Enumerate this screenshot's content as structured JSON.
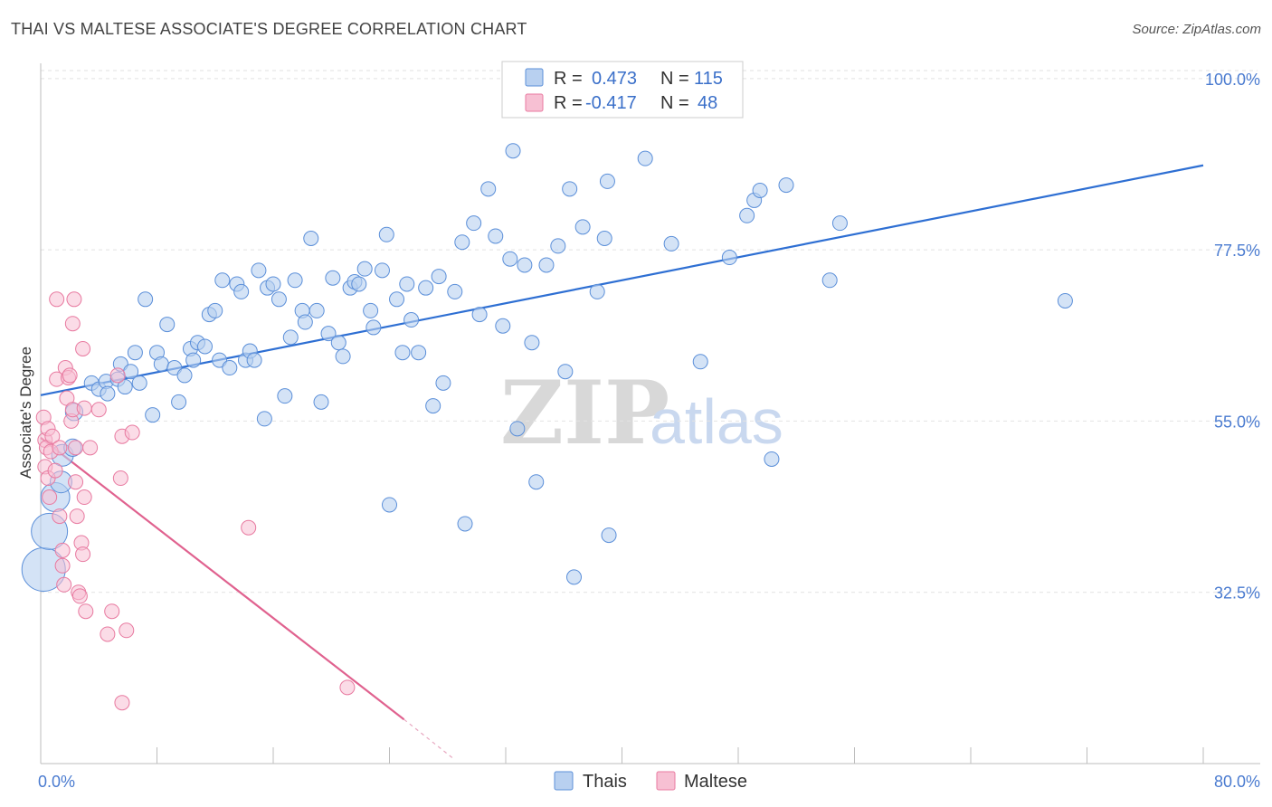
{
  "title": "THAI VS MALTESE ASSOCIATE'S DEGREE CORRELATION CHART",
  "source": "Source: ZipAtlas.com",
  "watermark": {
    "zip": "ZIP",
    "atlas": "atlas"
  },
  "colors": {
    "thais": "#5b8fd9",
    "maltese": "#e87aa0",
    "thais_fill": "#b8d0f0",
    "maltese_fill": "#f7c0d3",
    "tick": "#4a7bd0"
  },
  "legend": {
    "rows": [
      {
        "r_label": "R =",
        "r_value": "0.473",
        "n_label": "N =",
        "n_value": "115"
      },
      {
        "r_label": "R =",
        "r_value": "-0.417",
        "n_label": "N =",
        "n_value": "48"
      }
    ]
  },
  "chart_data": {
    "type": "scatter",
    "xlabel": "",
    "ylabel": "Associate's Degree",
    "xlim": [
      0,
      80
    ],
    "ylim": [
      10,
      102
    ],
    "x_tick_labels": [
      "0.0%",
      "80.0%"
    ],
    "y_ticks": [
      32.5,
      55.0,
      77.5,
      100.0
    ],
    "y_tick_labels": [
      "32.5%",
      "55.0%",
      "77.5%",
      "100.0%"
    ],
    "grid": true,
    "legend_position": "top-center",
    "series": [
      {
        "name": "Thais",
        "r": 0.473,
        "n": 115,
        "trend": {
          "x0": 0,
          "y0": 58.4,
          "x1": 80,
          "y1": 88.6
        },
        "points": [
          [
            0.2,
            35.5,
            3
          ],
          [
            0.6,
            40.5,
            2.5
          ],
          [
            1.0,
            45.0,
            2
          ],
          [
            1.4,
            47.0,
            1.5
          ],
          [
            1.5,
            50.5,
            1.5
          ],
          [
            2.2,
            51.5,
            1.2
          ],
          [
            2.3,
            56.2,
            1.2
          ],
          [
            3.5,
            60.0,
            1
          ],
          [
            4.0,
            59.2,
            1
          ],
          [
            4.5,
            60.2,
            1
          ],
          [
            4.6,
            58.6,
            1
          ],
          [
            5.3,
            60.5,
            1
          ],
          [
            5.5,
            62.5,
            1
          ],
          [
            5.8,
            59.5,
            1
          ],
          [
            6.2,
            61.5,
            1
          ],
          [
            6.5,
            64.0,
            1
          ],
          [
            6.8,
            60.0,
            1
          ],
          [
            7.2,
            71.0,
            1
          ],
          [
            7.7,
            55.8,
            1
          ],
          [
            8.0,
            64.0,
            1
          ],
          [
            8.3,
            62.5,
            1
          ],
          [
            8.7,
            67.7,
            1
          ],
          [
            9.2,
            62.0,
            1
          ],
          [
            9.5,
            57.5,
            1
          ],
          [
            9.9,
            61.0,
            1
          ],
          [
            10.3,
            64.5,
            1
          ],
          [
            10.5,
            63.0,
            1
          ],
          [
            10.8,
            65.3,
            1
          ],
          [
            11.3,
            64.8,
            1
          ],
          [
            11.6,
            69.0,
            1
          ],
          [
            12.0,
            69.5,
            1
          ],
          [
            12.3,
            63.0,
            1
          ],
          [
            12.5,
            73.5,
            1
          ],
          [
            13.0,
            62.0,
            1
          ],
          [
            13.5,
            73.0,
            1
          ],
          [
            13.8,
            72.0,
            1
          ],
          [
            14.1,
            63.0,
            1
          ],
          [
            14.4,
            64.2,
            1
          ],
          [
            14.7,
            63.0,
            1
          ],
          [
            15.0,
            74.8,
            1
          ],
          [
            15.4,
            55.3,
            1
          ],
          [
            15.6,
            72.5,
            1
          ],
          [
            16.0,
            73.0,
            1
          ],
          [
            16.4,
            71.0,
            1
          ],
          [
            16.8,
            58.3,
            1
          ],
          [
            17.2,
            66.0,
            1
          ],
          [
            17.5,
            73.5,
            1
          ],
          [
            18.0,
            69.5,
            1
          ],
          [
            18.2,
            68.0,
            1
          ],
          [
            18.6,
            79.0,
            1
          ],
          [
            19.0,
            69.5,
            1
          ],
          [
            19.3,
            57.5,
            1
          ],
          [
            19.8,
            66.5,
            1
          ],
          [
            20.1,
            73.8,
            1
          ],
          [
            20.5,
            65.3,
            1
          ],
          [
            20.8,
            63.5,
            1
          ],
          [
            21.3,
            72.5,
            1
          ],
          [
            21.6,
            73.3,
            1
          ],
          [
            21.9,
            73.0,
            1
          ],
          [
            22.3,
            75.0,
            1
          ],
          [
            22.7,
            69.5,
            1
          ],
          [
            22.9,
            67.3,
            1
          ],
          [
            23.5,
            74.8,
            1
          ],
          [
            23.8,
            79.5,
            1
          ],
          [
            24.0,
            44.0,
            1
          ],
          [
            24.5,
            71.0,
            1
          ],
          [
            24.9,
            64.0,
            1
          ],
          [
            25.2,
            73.0,
            1
          ],
          [
            25.5,
            68.3,
            1
          ],
          [
            26.0,
            64.0,
            1
          ],
          [
            26.5,
            72.5,
            1
          ],
          [
            27.0,
            57.0,
            1
          ],
          [
            27.4,
            74.0,
            1
          ],
          [
            27.7,
            60.0,
            1
          ],
          [
            28.5,
            72.0,
            1
          ],
          [
            29.0,
            78.5,
            1
          ],
          [
            29.2,
            41.5,
            1
          ],
          [
            29.8,
            81.0,
            1
          ],
          [
            30.2,
            69.0,
            1
          ],
          [
            30.8,
            85.5,
            1
          ],
          [
            31.3,
            79.3,
            1
          ],
          [
            31.8,
            67.5,
            1
          ],
          [
            32.3,
            76.3,
            1
          ],
          [
            32.5,
            90.5,
            1
          ],
          [
            32.8,
            54.0,
            1
          ],
          [
            33.3,
            75.5,
            1
          ],
          [
            33.8,
            65.3,
            1
          ],
          [
            34.1,
            47.0,
            1
          ],
          [
            34.8,
            75.5,
            1
          ],
          [
            35.6,
            78.0,
            1
          ],
          [
            36.1,
            61.5,
            1
          ],
          [
            36.4,
            85.5,
            1
          ],
          [
            36.7,
            34.5,
            1
          ],
          [
            37.3,
            80.5,
            1
          ],
          [
            38.3,
            72.0,
            1
          ],
          [
            38.8,
            79.0,
            1
          ],
          [
            39.1,
            40.0,
            1
          ],
          [
            39.0,
            86.5,
            1
          ],
          [
            41.6,
            89.5,
            1
          ],
          [
            43.4,
            78.3,
            1
          ],
          [
            45.4,
            62.8,
            1
          ],
          [
            47.4,
            76.5,
            1
          ],
          [
            48.6,
            82.0,
            1
          ],
          [
            49.1,
            84.0,
            1
          ],
          [
            49.5,
            85.3,
            1
          ],
          [
            50.3,
            50.0,
            1
          ],
          [
            51.3,
            86.0,
            1
          ],
          [
            54.3,
            73.5,
            1
          ],
          [
            55.0,
            81.0,
            1
          ],
          [
            70.5,
            70.8,
            1
          ]
        ]
      },
      {
        "name": "Maltese",
        "r": -0.417,
        "n": 48,
        "trend": {
          "x0": 0,
          "y0": 52.8,
          "x1": 25.0,
          "y1": 15.8,
          "dash_x1": 28.5,
          "dash_y1": 10.5
        },
        "points": [
          [
            0.2,
            55.5
          ],
          [
            0.3,
            49.0
          ],
          [
            0.3,
            52.5
          ],
          [
            0.4,
            51.5
          ],
          [
            0.5,
            47.5
          ],
          [
            0.5,
            54.0
          ],
          [
            0.6,
            45.0
          ],
          [
            0.7,
            51.0
          ],
          [
            0.8,
            53.0
          ],
          [
            1.0,
            48.5
          ],
          [
            1.1,
            71.0
          ],
          [
            1.1,
            60.5
          ],
          [
            1.3,
            51.5
          ],
          [
            1.3,
            42.5
          ],
          [
            1.5,
            38.0
          ],
          [
            1.5,
            36.0
          ],
          [
            1.6,
            33.5
          ],
          [
            1.7,
            62.0
          ],
          [
            1.8,
            58.0
          ],
          [
            1.9,
            60.7
          ],
          [
            2.0,
            61.0
          ],
          [
            2.1,
            55.0
          ],
          [
            2.2,
            56.5
          ],
          [
            2.2,
            67.8
          ],
          [
            2.3,
            71.0
          ],
          [
            2.4,
            51.5
          ],
          [
            2.4,
            47.0
          ],
          [
            2.5,
            42.5
          ],
          [
            2.6,
            32.5
          ],
          [
            2.7,
            32.0
          ],
          [
            2.8,
            39.0
          ],
          [
            2.9,
            37.5
          ],
          [
            2.9,
            64.5
          ],
          [
            3.0,
            45.0
          ],
          [
            3.0,
            56.7
          ],
          [
            3.1,
            30.0
          ],
          [
            3.4,
            51.5
          ],
          [
            4.0,
            56.5
          ],
          [
            4.6,
            27.0
          ],
          [
            4.9,
            30.0
          ],
          [
            5.3,
            61.0
          ],
          [
            5.5,
            47.5
          ],
          [
            5.6,
            18.0
          ],
          [
            5.6,
            53.0
          ],
          [
            5.9,
            27.5
          ],
          [
            6.3,
            53.5
          ],
          [
            14.3,
            41.0
          ],
          [
            21.1,
            20.0
          ]
        ]
      }
    ]
  }
}
